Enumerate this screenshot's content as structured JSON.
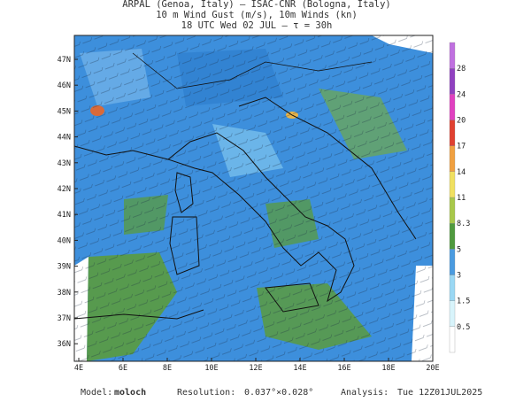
{
  "header": {
    "lines": [
      "ARPAL (Genoa, Italy)  –  ISAC-CNR (Bologna, Italy)",
      "10 m Wind Gust (m/s), 10m Winds (kn)",
      "18 UTC Wed 02 JUL  –  τ = 30h"
    ]
  },
  "map": {
    "lat_labels": [
      "47N",
      "46N",
      "45N",
      "44N",
      "43N",
      "42N",
      "41N",
      "40N",
      "39N",
      "38N",
      "37N",
      "36N"
    ],
    "lon_labels": [
      "4E",
      "6E",
      "8E",
      "10E",
      "12E",
      "14E",
      "16E",
      "18E",
      "20E"
    ]
  },
  "colorbar": {
    "labels": [
      "28",
      "24",
      "20",
      "17",
      "14",
      "11",
      "8.3",
      "5",
      "3",
      "1.5",
      "0.5"
    ]
  },
  "footer": {
    "model_label": "Model:",
    "model": "moloch",
    "resolution_label": "Resolution:",
    "resolution": "0.037°×0.028°",
    "analysis_label": "Analysis:",
    "analysis": "Tue 12Z01JUL2025"
  }
}
